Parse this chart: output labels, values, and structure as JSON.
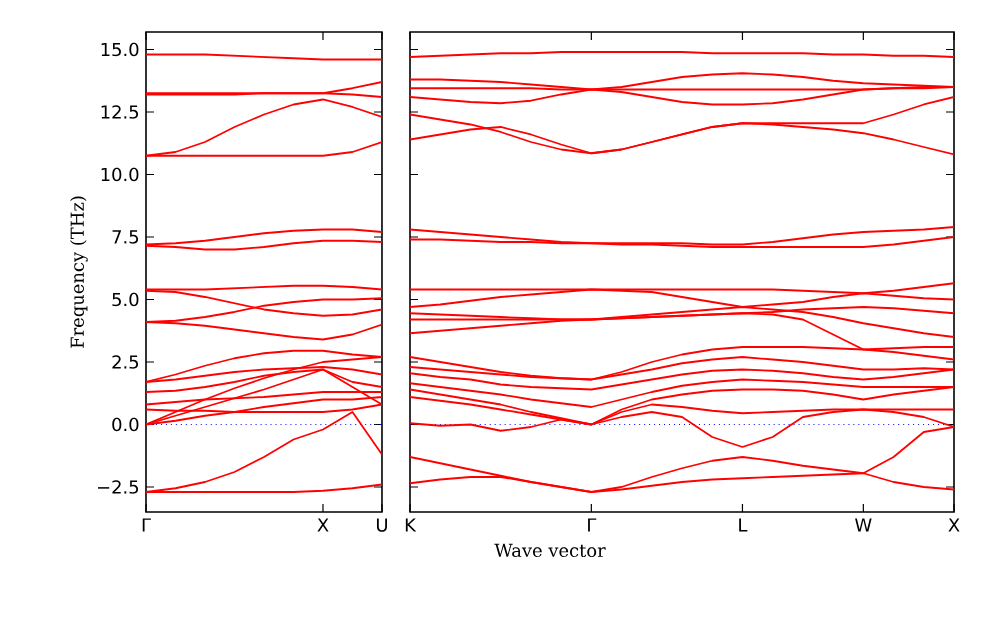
{
  "chart_data": [
    {
      "type": "line",
      "ylabel": "Frequency (THz)",
      "ylim": [
        -3.5,
        15.7
      ],
      "categories": [
        "Γ",
        null,
        null,
        null,
        null,
        null,
        "X",
        null,
        "U"
      ],
      "yticks": [
        {
          "value": -2.5,
          "label": "−2.5"
        },
        {
          "value": 0,
          "label": "0.0"
        },
        {
          "value": 2.5,
          "label": "2.5"
        },
        {
          "value": 5,
          "label": "5.0"
        },
        {
          "value": 7.5,
          "label": "7.5"
        },
        {
          "value": 10,
          "label": "10.0"
        },
        {
          "value": 12.5,
          "label": "12.5"
        },
        {
          "value": 15,
          "label": "15.0"
        }
      ],
      "ref_lines": [
        {
          "axis": "y",
          "value": 0,
          "color": "#0000ff",
          "line_style": "dotted"
        }
      ],
      "series": [
        {
          "color": "#ff0000",
          "values": [
            14.8,
            14.8,
            14.8,
            14.75,
            14.7,
            14.65,
            14.6,
            14.6,
            14.6
          ]
        },
        {
          "color": "#ff0000",
          "values": [
            13.2,
            13.2,
            13.2,
            13.2,
            13.25,
            13.25,
            13.25,
            13.45,
            13.7
          ]
        },
        {
          "color": "#ff0000",
          "values": [
            13.25,
            13.25,
            13.25,
            13.25,
            13.25,
            13.25,
            13.25,
            13.2,
            13.1
          ]
        },
        {
          "color": "#ff0000",
          "values": [
            10.75,
            10.9,
            11.3,
            11.9,
            12.4,
            12.8,
            13.0,
            12.7,
            12.3
          ]
        },
        {
          "color": "#ff0000",
          "values": [
            10.75,
            10.75,
            10.75,
            10.75,
            10.75,
            10.75,
            10.75,
            10.9,
            11.3
          ]
        },
        {
          "color": "#ff0000",
          "values": [
            7.2,
            7.25,
            7.35,
            7.5,
            7.65,
            7.75,
            7.8,
            7.8,
            7.7
          ]
        },
        {
          "color": "#ff0000",
          "values": [
            7.15,
            7.1,
            7.0,
            7.0,
            7.1,
            7.25,
            7.35,
            7.35,
            7.3
          ]
        },
        {
          "color": "#ff0000",
          "values": [
            5.4,
            5.4,
            5.4,
            5.45,
            5.5,
            5.55,
            5.55,
            5.5,
            5.4
          ]
        },
        {
          "color": "#ff0000",
          "values": [
            5.35,
            5.3,
            5.1,
            4.85,
            4.6,
            4.45,
            4.35,
            4.4,
            4.6
          ]
        },
        {
          "color": "#ff0000",
          "values": [
            4.1,
            4.15,
            4.3,
            4.5,
            4.75,
            4.9,
            5.0,
            5.0,
            5.05
          ]
        },
        {
          "color": "#ff0000",
          "values": [
            4.1,
            4.05,
            3.95,
            3.8,
            3.65,
            3.5,
            3.4,
            3.6,
            4.0
          ]
        },
        {
          "color": "#ff0000",
          "values": [
            1.7,
            2.0,
            2.35,
            2.65,
            2.85,
            2.95,
            2.95,
            2.8,
            2.7
          ]
        },
        {
          "color": "#ff0000",
          "values": [
            1.7,
            1.8,
            1.95,
            2.1,
            2.2,
            2.25,
            2.3,
            2.2,
            2.0
          ]
        },
        {
          "color": "#ff0000",
          "values": [
            1.3,
            1.35,
            1.5,
            1.7,
            1.95,
            2.1,
            2.2,
            1.7,
            1.5
          ]
        },
        {
          "color": "#ff0000",
          "values": [
            0.8,
            0.9,
            1.0,
            1.05,
            1.1,
            1.2,
            1.3,
            1.3,
            1.3
          ]
        },
        {
          "color": "#ff0000",
          "values": [
            0.6,
            0.55,
            0.55,
            0.5,
            0.5,
            0.5,
            0.5,
            0.6,
            0.8
          ]
        },
        {
          "color": "#ff0000",
          "values": [
            0,
            0.5,
            1.0,
            1.45,
            1.85,
            2.2,
            2.5,
            2.6,
            2.7
          ]
        },
        {
          "color": "#ff0000",
          "values": [
            0,
            0.35,
            0.7,
            1.05,
            1.4,
            1.8,
            2.2,
            1.5,
            0.8
          ]
        },
        {
          "color": "#ff0000",
          "values": [
            0,
            0.15,
            0.35,
            0.5,
            0.7,
            0.85,
            1.0,
            1.0,
            1.1
          ]
        },
        {
          "color": "#ff0000",
          "values": [
            -2.7,
            -2.55,
            -2.3,
            -1.9,
            -1.3,
            -0.6,
            -0.2,
            0.5,
            -1.2
          ]
        },
        {
          "color": "#ff0000",
          "values": [
            -2.7,
            -2.7,
            -2.7,
            -2.7,
            -2.7,
            -2.7,
            -2.65,
            -2.55,
            -2.4
          ]
        }
      ]
    },
    {
      "type": "line",
      "xlabel": "Wave vector",
      "ylim": [
        -3.5,
        15.7
      ],
      "tick_labels": "x",
      "categories": [
        "K",
        null,
        null,
        null,
        null,
        null,
        "Γ",
        null,
        null,
        null,
        null,
        "L",
        null,
        null,
        null,
        "W",
        null,
        null,
        "X"
      ],
      "yticks": [
        {
          "value": -2.5,
          "label": null
        },
        {
          "value": 0,
          "label": null
        },
        {
          "value": 2.5,
          "label": null
        },
        {
          "value": 5,
          "label": null
        },
        {
          "value": 7.5,
          "label": null
        },
        {
          "value": 10,
          "label": null
        },
        {
          "value": 12.5,
          "label": null
        },
        {
          "value": 15,
          "label": null
        }
      ],
      "ref_lines": [
        {
          "axis": "y",
          "value": 0,
          "color": "#0000ff",
          "line_style": "dotted"
        }
      ],
      "series": [
        {
          "color": "#ff0000",
          "values": [
            14.7,
            14.75,
            14.8,
            14.85,
            14.85,
            14.9,
            14.9,
            14.9,
            14.9,
            14.9,
            14.85,
            14.85,
            14.85,
            14.85,
            14.8,
            14.8,
            14.75,
            14.75,
            14.7
          ]
        },
        {
          "color": "#ff0000",
          "values": [
            13.8,
            13.8,
            13.75,
            13.7,
            13.6,
            13.5,
            13.4,
            13.5,
            13.7,
            13.9,
            14.0,
            14.05,
            14.0,
            13.9,
            13.75,
            13.65,
            13.6,
            13.55,
            13.5
          ]
        },
        {
          "color": "#ff0000",
          "values": [
            13.45,
            13.45,
            13.45,
            13.45,
            13.45,
            13.4,
            13.4,
            13.4,
            13.4,
            13.4,
            13.4,
            13.4,
            13.4,
            13.4,
            13.4,
            13.4,
            13.45,
            13.45,
            13.5
          ]
        },
        {
          "color": "#ff0000",
          "values": [
            13.1,
            13.0,
            12.9,
            12.85,
            12.95,
            13.2,
            13.4,
            13.3,
            13.1,
            12.9,
            12.8,
            12.8,
            12.85,
            13.0,
            13.2,
            13.4,
            13.45,
            13.5,
            13.5
          ]
        },
        {
          "color": "#ff0000",
          "values": [
            12.4,
            12.2,
            12.0,
            11.7,
            11.3,
            11.0,
            10.85,
            11.0,
            11.3,
            11.6,
            11.9,
            12.05,
            12.05,
            12.05,
            12.05,
            12.05,
            12.4,
            12.8,
            13.1
          ]
        },
        {
          "color": "#ff0000",
          "values": [
            11.4,
            11.6,
            11.8,
            11.9,
            11.6,
            11.2,
            10.85,
            11.0,
            11.3,
            11.6,
            11.9,
            12.05,
            12.0,
            11.9,
            11.8,
            11.65,
            11.4,
            11.1,
            10.8
          ]
        },
        {
          "color": "#ff0000",
          "values": [
            7.8,
            7.7,
            7.6,
            7.5,
            7.4,
            7.3,
            7.25,
            7.25,
            7.25,
            7.25,
            7.2,
            7.2,
            7.3,
            7.45,
            7.6,
            7.7,
            7.75,
            7.8,
            7.9
          ]
        },
        {
          "color": "#ff0000",
          "values": [
            7.4,
            7.4,
            7.35,
            7.3,
            7.3,
            7.25,
            7.25,
            7.2,
            7.2,
            7.15,
            7.1,
            7.1,
            7.1,
            7.1,
            7.1,
            7.1,
            7.2,
            7.35,
            7.5
          ]
        },
        {
          "color": "#ff0000",
          "values": [
            5.4,
            5.4,
            5.4,
            5.4,
            5.4,
            5.4,
            5.4,
            5.4,
            5.4,
            5.4,
            5.4,
            5.4,
            5.4,
            5.35,
            5.3,
            5.25,
            5.35,
            5.5,
            5.65
          ]
        },
        {
          "color": "#ff0000",
          "values": [
            4.7,
            4.8,
            4.95,
            5.1,
            5.2,
            5.3,
            5.4,
            5.35,
            5.3,
            5.1,
            4.9,
            4.7,
            4.8,
            4.9,
            5.1,
            5.25,
            5.15,
            5.05,
            5.0
          ]
        },
        {
          "color": "#ff0000",
          "values": [
            4.45,
            4.4,
            4.35,
            4.3,
            4.25,
            4.2,
            4.2,
            4.25,
            4.3,
            4.35,
            4.4,
            4.45,
            4.5,
            4.6,
            4.65,
            4.7,
            4.65,
            4.55,
            4.45
          ]
        },
        {
          "color": "#ff0000",
          "values": [
            4.2,
            4.2,
            4.2,
            4.2,
            4.2,
            4.2,
            4.2,
            4.3,
            4.4,
            4.5,
            4.6,
            4.7,
            4.6,
            4.5,
            4.3,
            4.05,
            3.85,
            3.65,
            3.5
          ]
        },
        {
          "color": "#ff0000",
          "values": [
            3.65,
            3.75,
            3.85,
            3.95,
            4.05,
            4.15,
            4.2,
            4.25,
            4.3,
            4.35,
            4.4,
            4.45,
            4.4,
            4.2,
            3.6,
            3.0,
            3.05,
            3.1,
            3.1
          ]
        },
        {
          "color": "#ff0000",
          "values": [
            2.7,
            2.5,
            2.3,
            2.1,
            1.95,
            1.85,
            1.8,
            2.1,
            2.5,
            2.8,
            3.0,
            3.1,
            3.1,
            3.1,
            3.05,
            3.0,
            2.9,
            2.75,
            2.6
          ]
        },
        {
          "color": "#ff0000",
          "values": [
            2.3,
            2.2,
            2.1,
            2.0,
            1.9,
            1.85,
            1.8,
            2.0,
            2.2,
            2.45,
            2.6,
            2.7,
            2.6,
            2.5,
            2.35,
            2.2,
            2.2,
            2.25,
            2.2
          ]
        },
        {
          "color": "#ff0000",
          "values": [
            2.05,
            1.9,
            1.8,
            1.6,
            1.5,
            1.45,
            1.4,
            1.6,
            1.8,
            2.0,
            2.15,
            2.2,
            2.15,
            2.05,
            1.9,
            1.8,
            1.9,
            2.05,
            2.2
          ]
        },
        {
          "color": "#ff0000",
          "values": [
            1.65,
            1.5,
            1.35,
            1.2,
            1.0,
            0.85,
            0.7,
            1.0,
            1.3,
            1.55,
            1.7,
            1.8,
            1.75,
            1.7,
            1.6,
            1.5,
            1.5,
            1.5,
            1.5
          ]
        },
        {
          "color": "#ff0000",
          "values": [
            1.4,
            1.2,
            1.0,
            0.8,
            0.5,
            0.25,
            0,
            0.6,
            1.0,
            1.2,
            1.35,
            1.4,
            1.4,
            1.35,
            1.2,
            1.0,
            1.2,
            1.35,
            1.5
          ]
        },
        {
          "color": "#ff0000",
          "values": [
            1.1,
            0.95,
            0.8,
            0.6,
            0.4,
            0.2,
            0,
            0.5,
            0.8,
            0.7,
            0.55,
            0.45,
            0.5,
            0.55,
            0.6,
            0.6,
            0.6,
            0.6,
            0.6
          ]
        },
        {
          "color": "#ff0000",
          "values": [
            0.05,
            -0.05,
            0,
            -0.25,
            -0.1,
            0.2,
            0,
            0.3,
            0.5,
            0.3,
            -0.5,
            -0.9,
            -0.5,
            0.3,
            0.5,
            0.6,
            0.5,
            0.3,
            -0.1
          ]
        },
        {
          "color": "#ff0000",
          "values": [
            -1.3,
            -1.55,
            -1.8,
            -2.05,
            -2.3,
            -2.5,
            -2.7,
            -2.5,
            -2.1,
            -1.75,
            -1.45,
            -1.3,
            -1.45,
            -1.65,
            -1.8,
            -1.95,
            -1.3,
            -0.3,
            -0.1
          ]
        },
        {
          "color": "#ff0000",
          "values": [
            -2.35,
            -2.2,
            -2.1,
            -2.1,
            -2.3,
            -2.5,
            -2.7,
            -2.6,
            -2.45,
            -2.3,
            -2.2,
            -2.15,
            -2.1,
            -2.05,
            -2.0,
            -1.95,
            -2.3,
            -2.5,
            -2.6
          ]
        }
      ]
    }
  ]
}
